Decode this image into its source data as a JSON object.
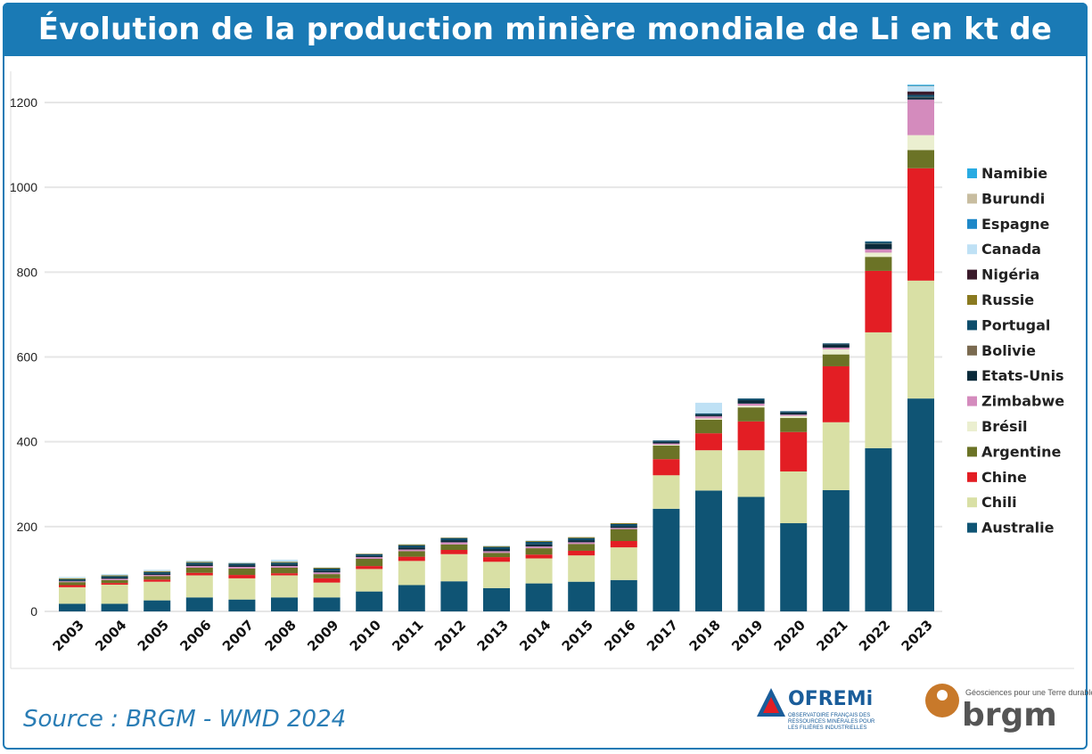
{
  "header": {
    "title": "Évolution de la production minière mondiale de Li en kt de LCE"
  },
  "footer": {
    "source": "Source : BRGM - WMD 2024",
    "logo_ofremi": "OFREMi",
    "logo_ofremi_sub": "OBSERVATOIRE FRANÇAIS DES RESSOURCES MINÉRALES POUR LES FILIÈRES INDUSTRIELLES",
    "logo_brgm": "brgm",
    "logo_brgm_tagline": "Géosciences pour une Terre durable"
  },
  "chart_data": {
    "type": "bar",
    "stacked": true,
    "title": "Évolution de la production minière mondiale de Li en kt de LCE",
    "xlabel": "",
    "ylabel": "",
    "ylim": [
      0,
      1250
    ],
    "yticks": [
      0,
      200,
      400,
      600,
      800,
      1000,
      1200
    ],
    "grid": true,
    "legend": "right",
    "categories": [
      "2003",
      "2004",
      "2005",
      "2006",
      "2007",
      "2008",
      "2009",
      "2010",
      "2011",
      "2012",
      "2013",
      "2014",
      "2015",
      "2016",
      "2017",
      "2018",
      "2019",
      "2020",
      "2021",
      "2022",
      "2023"
    ],
    "series": [
      {
        "name": "Australie",
        "color": "#0f5474",
        "values": [
          18,
          18,
          26,
          33,
          28,
          33,
          33,
          47,
          62,
          71,
          55,
          66,
          70,
          74,
          242,
          285,
          270,
          208,
          286,
          385,
          502
        ]
      },
      {
        "name": "Chili",
        "color": "#d9e0a5",
        "values": [
          39,
          45,
          44,
          52,
          50,
          52,
          35,
          53,
          57,
          64,
          62,
          59,
          62,
          77,
          79,
          95,
          110,
          122,
          160,
          273,
          278
        ]
      },
      {
        "name": "Chine",
        "color": "#e31e24",
        "values": [
          5,
          4,
          5,
          6,
          8,
          5,
          10,
          7,
          10,
          10,
          11,
          9,
          11,
          15,
          38,
          40,
          68,
          93,
          132,
          145,
          265
        ]
      },
      {
        "name": "Argentine",
        "color": "#6b7326",
        "values": [
          7,
          7,
          8,
          12,
          15,
          13,
          10,
          17,
          13,
          13,
          10,
          15,
          16,
          28,
          32,
          32,
          33,
          33,
          28,
          33,
          43
        ]
      },
      {
        "name": "Brésil",
        "color": "#ebefd0",
        "values": [
          0,
          0,
          0,
          0,
          0,
          0,
          0,
          0,
          0,
          0,
          0,
          0,
          0,
          0,
          2,
          3,
          4,
          5,
          12,
          10,
          35
        ]
      },
      {
        "name": "Zimbabwe",
        "color": "#d48bbd",
        "values": [
          2,
          3,
          3,
          4,
          4,
          4,
          4,
          4,
          4,
          5,
          4,
          4,
          4,
          3,
          3,
          5,
          5,
          3,
          4,
          8,
          84
        ]
      },
      {
        "name": "Etats-Unis",
        "color": "#0a2a3a",
        "values": [
          2,
          3,
          3,
          4,
          4,
          4,
          4,
          3,
          5,
          5,
          5,
          5,
          5,
          4,
          4,
          4,
          8,
          5,
          8,
          12,
          5
        ]
      },
      {
        "name": "Bolivie",
        "color": "#7a6a50",
        "values": [
          0,
          0,
          0,
          0,
          0,
          0,
          0,
          0,
          0,
          0,
          0,
          0,
          0,
          0,
          0,
          0,
          0,
          0,
          0,
          1,
          1
        ]
      },
      {
        "name": "Portugal",
        "color": "#0e4d6b",
        "values": [
          3,
          3,
          4,
          4,
          4,
          4,
          5,
          4,
          5,
          5,
          5,
          6,
          5,
          5,
          3,
          3,
          4,
          3,
          2,
          5,
          5
        ]
      },
      {
        "name": "Russie",
        "color": "#8a7a20",
        "values": [
          2,
          2,
          2,
          2,
          1,
          2,
          2,
          1,
          2,
          1,
          2,
          2,
          2,
          2,
          0,
          0,
          0,
          0,
          0,
          0,
          0
        ]
      },
      {
        "name": "Nigéria",
        "color": "#3a1a2a",
        "values": [
          0,
          0,
          0,
          0,
          0,
          0,
          0,
          0,
          0,
          0,
          0,
          0,
          0,
          0,
          0,
          0,
          0,
          0,
          0,
          0,
          8
        ]
      },
      {
        "name": "Canada",
        "color": "#bfe1f5",
        "values": [
          3,
          3,
          3,
          3,
          2,
          5,
          1,
          0,
          1,
          0,
          1,
          2,
          0,
          0,
          0,
          25,
          0,
          0,
          0,
          2,
          12
        ]
      },
      {
        "name": "Espagne",
        "color": "#1e88c8",
        "values": [
          0,
          0,
          0,
          0,
          0,
          0,
          0,
          0,
          0,
          0,
          0,
          0,
          0,
          0,
          0,
          0,
          0,
          0,
          0,
          0,
          1
        ]
      },
      {
        "name": "Burundi",
        "color": "#c8bda0",
        "values": [
          0,
          0,
          0,
          0,
          0,
          0,
          0,
          0,
          0,
          0,
          0,
          0,
          0,
          0,
          0,
          0,
          0,
          0,
          0,
          0,
          1
        ]
      },
      {
        "name": "Namibie",
        "color": "#29abe2",
        "values": [
          0,
          0,
          0,
          0,
          0,
          0,
          0,
          0,
          0,
          0,
          0,
          0,
          0,
          0,
          0,
          0,
          0,
          0,
          0,
          0,
          2
        ]
      }
    ]
  }
}
